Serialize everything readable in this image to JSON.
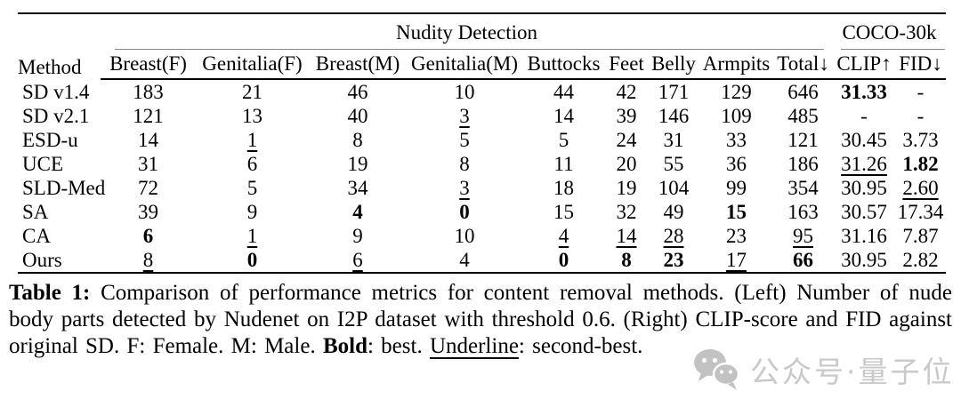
{
  "table": {
    "method_header": "Method",
    "group1": "Nudity Detection",
    "group2": "COCO-30k",
    "subheaders": [
      "Breast(F)",
      "Genitalia(F)",
      "Breast(M)",
      "Genitalia(M)",
      "Buttocks",
      "Feet",
      "Belly",
      "Armpits",
      "Total↓",
      "CLIP↑",
      "FID↓"
    ],
    "rows": [
      {
        "method": "SD v1.4",
        "cells": [
          {
            "v": "183"
          },
          {
            "v": "21"
          },
          {
            "v": "46"
          },
          {
            "v": "10"
          },
          {
            "v": "44"
          },
          {
            "v": "42"
          },
          {
            "v": "171"
          },
          {
            "v": "129"
          },
          {
            "v": "646"
          },
          {
            "v": "31.33",
            "b": 1
          },
          {
            "v": "-"
          }
        ]
      },
      {
        "method": "SD v2.1",
        "cells": [
          {
            "v": "121"
          },
          {
            "v": "13"
          },
          {
            "v": "40"
          },
          {
            "v": "3",
            "u": 1
          },
          {
            "v": "14"
          },
          {
            "v": "39"
          },
          {
            "v": "146"
          },
          {
            "v": "109"
          },
          {
            "v": "485"
          },
          {
            "v": "-"
          },
          {
            "v": "-"
          }
        ]
      },
      {
        "method": "ESD-u",
        "cells": [
          {
            "v": "14"
          },
          {
            "v": "1",
            "u": 1
          },
          {
            "v": "8"
          },
          {
            "v": "5"
          },
          {
            "v": "5"
          },
          {
            "v": "24"
          },
          {
            "v": "31"
          },
          {
            "v": "33"
          },
          {
            "v": "121"
          },
          {
            "v": "30.45"
          },
          {
            "v": "3.73"
          }
        ]
      },
      {
        "method": "UCE",
        "cells": [
          {
            "v": "31"
          },
          {
            "v": "6"
          },
          {
            "v": "19"
          },
          {
            "v": "8"
          },
          {
            "v": "11"
          },
          {
            "v": "20"
          },
          {
            "v": "55"
          },
          {
            "v": "36"
          },
          {
            "v": "186"
          },
          {
            "v": "31.26",
            "u": 1
          },
          {
            "v": "1.82",
            "b": 1
          }
        ]
      },
      {
        "method": "SLD-Med",
        "cells": [
          {
            "v": "72"
          },
          {
            "v": "5"
          },
          {
            "v": "34"
          },
          {
            "v": "3",
            "u": 1
          },
          {
            "v": "18"
          },
          {
            "v": "19"
          },
          {
            "v": "104"
          },
          {
            "v": "99"
          },
          {
            "v": "354"
          },
          {
            "v": "30.95"
          },
          {
            "v": "2.60",
            "u": 1
          }
        ]
      },
      {
        "method": "SA",
        "cells": [
          {
            "v": "39"
          },
          {
            "v": "9"
          },
          {
            "v": "4",
            "b": 1
          },
          {
            "v": "0",
            "b": 1
          },
          {
            "v": "15"
          },
          {
            "v": "32"
          },
          {
            "v": "49"
          },
          {
            "v": "15",
            "b": 1
          },
          {
            "v": "163"
          },
          {
            "v": "30.57"
          },
          {
            "v": "17.34"
          }
        ]
      },
      {
        "method": "CA",
        "cells": [
          {
            "v": "6",
            "b": 1
          },
          {
            "v": "1",
            "u": 1
          },
          {
            "v": "9"
          },
          {
            "v": "10"
          },
          {
            "v": "4",
            "u": 1
          },
          {
            "v": "14",
            "u": 1
          },
          {
            "v": "28",
            "u": 1
          },
          {
            "v": "23"
          },
          {
            "v": "95",
            "u": 1
          },
          {
            "v": "31.16"
          },
          {
            "v": "7.87"
          }
        ]
      },
      {
        "method": "Ours",
        "cells": [
          {
            "v": "8",
            "u": 1
          },
          {
            "v": "0",
            "b": 1
          },
          {
            "v": "6",
            "u": 1
          },
          {
            "v": "4"
          },
          {
            "v": "0",
            "b": 1
          },
          {
            "v": "8",
            "b": 1
          },
          {
            "v": "23",
            "b": 1
          },
          {
            "v": "17",
            "u": 1
          },
          {
            "v": "66",
            "b": 1
          },
          {
            "v": "30.95"
          },
          {
            "v": "2.82"
          }
        ]
      }
    ]
  },
  "caption": {
    "label": "Table 1:",
    "part1": " Comparison of performance metrics for content removal methods. (Left) Number of nude body parts detected by Nudenet on I2P dataset with threshold 0.6. (Right) CLIP-score and FID against original SD. F: Female. M: Male. ",
    "bold_word": "Bold",
    "part2": ": best. ",
    "underline_word": "Underline",
    "part3": ": second-best."
  },
  "watermark": {
    "icon": "wechat-logo",
    "text": "公众号·量子位",
    "color": "#c9c9c9"
  }
}
